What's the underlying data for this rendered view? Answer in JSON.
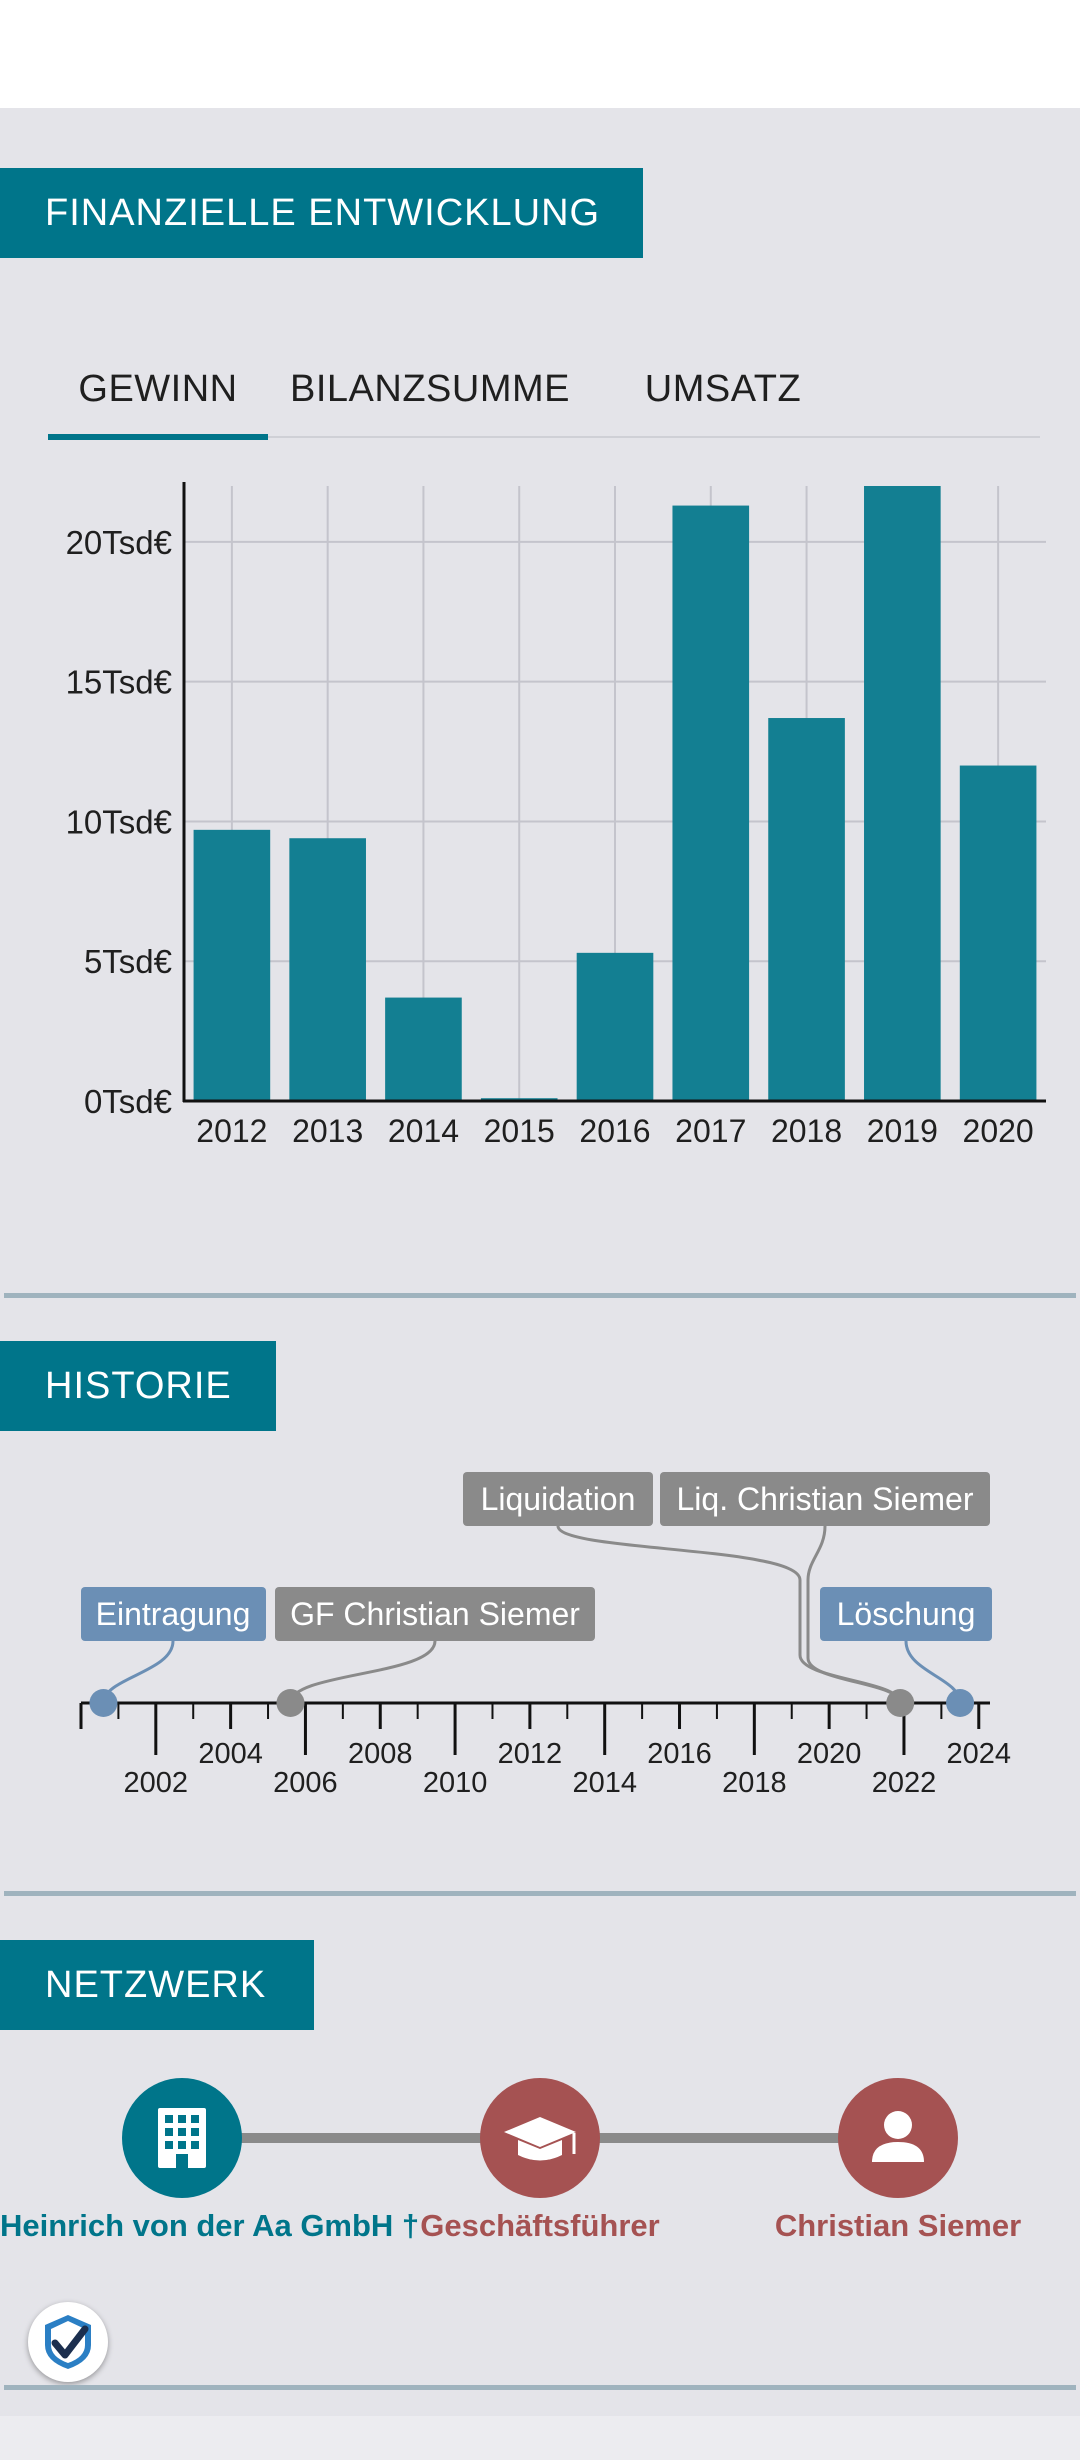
{
  "finance": {
    "header": "FINANZIELLE ENTWICKLUNG",
    "tabs": [
      {
        "label": "GEWINN",
        "active": true
      },
      {
        "label": "BILANZSUMME",
        "active": false
      },
      {
        "label": "UMSATZ",
        "active": false
      }
    ]
  },
  "chart_data": {
    "type": "bar",
    "categories": [
      "2012",
      "2013",
      "2014",
      "2015",
      "2016",
      "2017",
      "2018",
      "2019",
      "2020"
    ],
    "values": [
      9700,
      9400,
      3700,
      100,
      5300,
      21300,
      13700,
      22000,
      12000
    ],
    "yticks": [
      0,
      5000,
      10000,
      15000,
      20000
    ],
    "ytick_labels": [
      "0Tsd€",
      "5Tsd€",
      "10Tsd€",
      "15Tsd€",
      "20Tsd€"
    ],
    "ylim": [
      0,
      22000
    ],
    "grid": true,
    "bar_color": "#137f92",
    "title": "",
    "xlabel": "",
    "ylabel": ""
  },
  "history": {
    "header": "HISTORIE",
    "ticks": [
      {
        "year": 2002,
        "label": "2002",
        "row": "low"
      },
      {
        "year": 2004,
        "label": "2004",
        "row": "high"
      },
      {
        "year": 2006,
        "label": "2006",
        "row": "low"
      },
      {
        "year": 2008,
        "label": "2008",
        "row": "high"
      },
      {
        "year": 2010,
        "label": "2010",
        "row": "low"
      },
      {
        "year": 2012,
        "label": "2012",
        "row": "high"
      },
      {
        "year": 2014,
        "label": "2014",
        "row": "low"
      },
      {
        "year": 2016,
        "label": "2016",
        "row": "high"
      },
      {
        "year": 2018,
        "label": "2018",
        "row": "low"
      },
      {
        "year": 2020,
        "label": "2020",
        "row": "high"
      },
      {
        "year": 2022,
        "label": "2022",
        "row": "low"
      },
      {
        "year": 2024,
        "label": "2024",
        "row": "high"
      }
    ],
    "events": [
      {
        "label": "Eintragung",
        "year": 2000.6,
        "kind": "register",
        "color": "#6b8fb5"
      },
      {
        "label": "GF Christian Siemer",
        "year": 2005.6,
        "kind": "person",
        "color": "#8a8a8a"
      },
      {
        "label": "Liquidation",
        "year": 2021.9,
        "kind": "person",
        "color": "#8a8a8a"
      },
      {
        "label": "Liq. Christian Siemer",
        "year": 2021.9,
        "kind": "person",
        "color": "#8a8a8a"
      },
      {
        "label": "Löschung",
        "year": 2023.5,
        "kind": "register",
        "color": "#6b8fb5"
      }
    ]
  },
  "network": {
    "header": "NETZWERK",
    "nodes": [
      {
        "label": "Heinrich von der Aa GmbH †",
        "icon": "building-icon",
        "color": "#00758a"
      },
      {
        "label": "Geschäftsführer",
        "icon": "graduation-cap-icon",
        "color": "#a55252"
      },
      {
        "label": "Christian Siemer",
        "icon": "person-icon",
        "color": "#a55252"
      }
    ]
  },
  "badge": {
    "icon": "verified-check-icon"
  }
}
